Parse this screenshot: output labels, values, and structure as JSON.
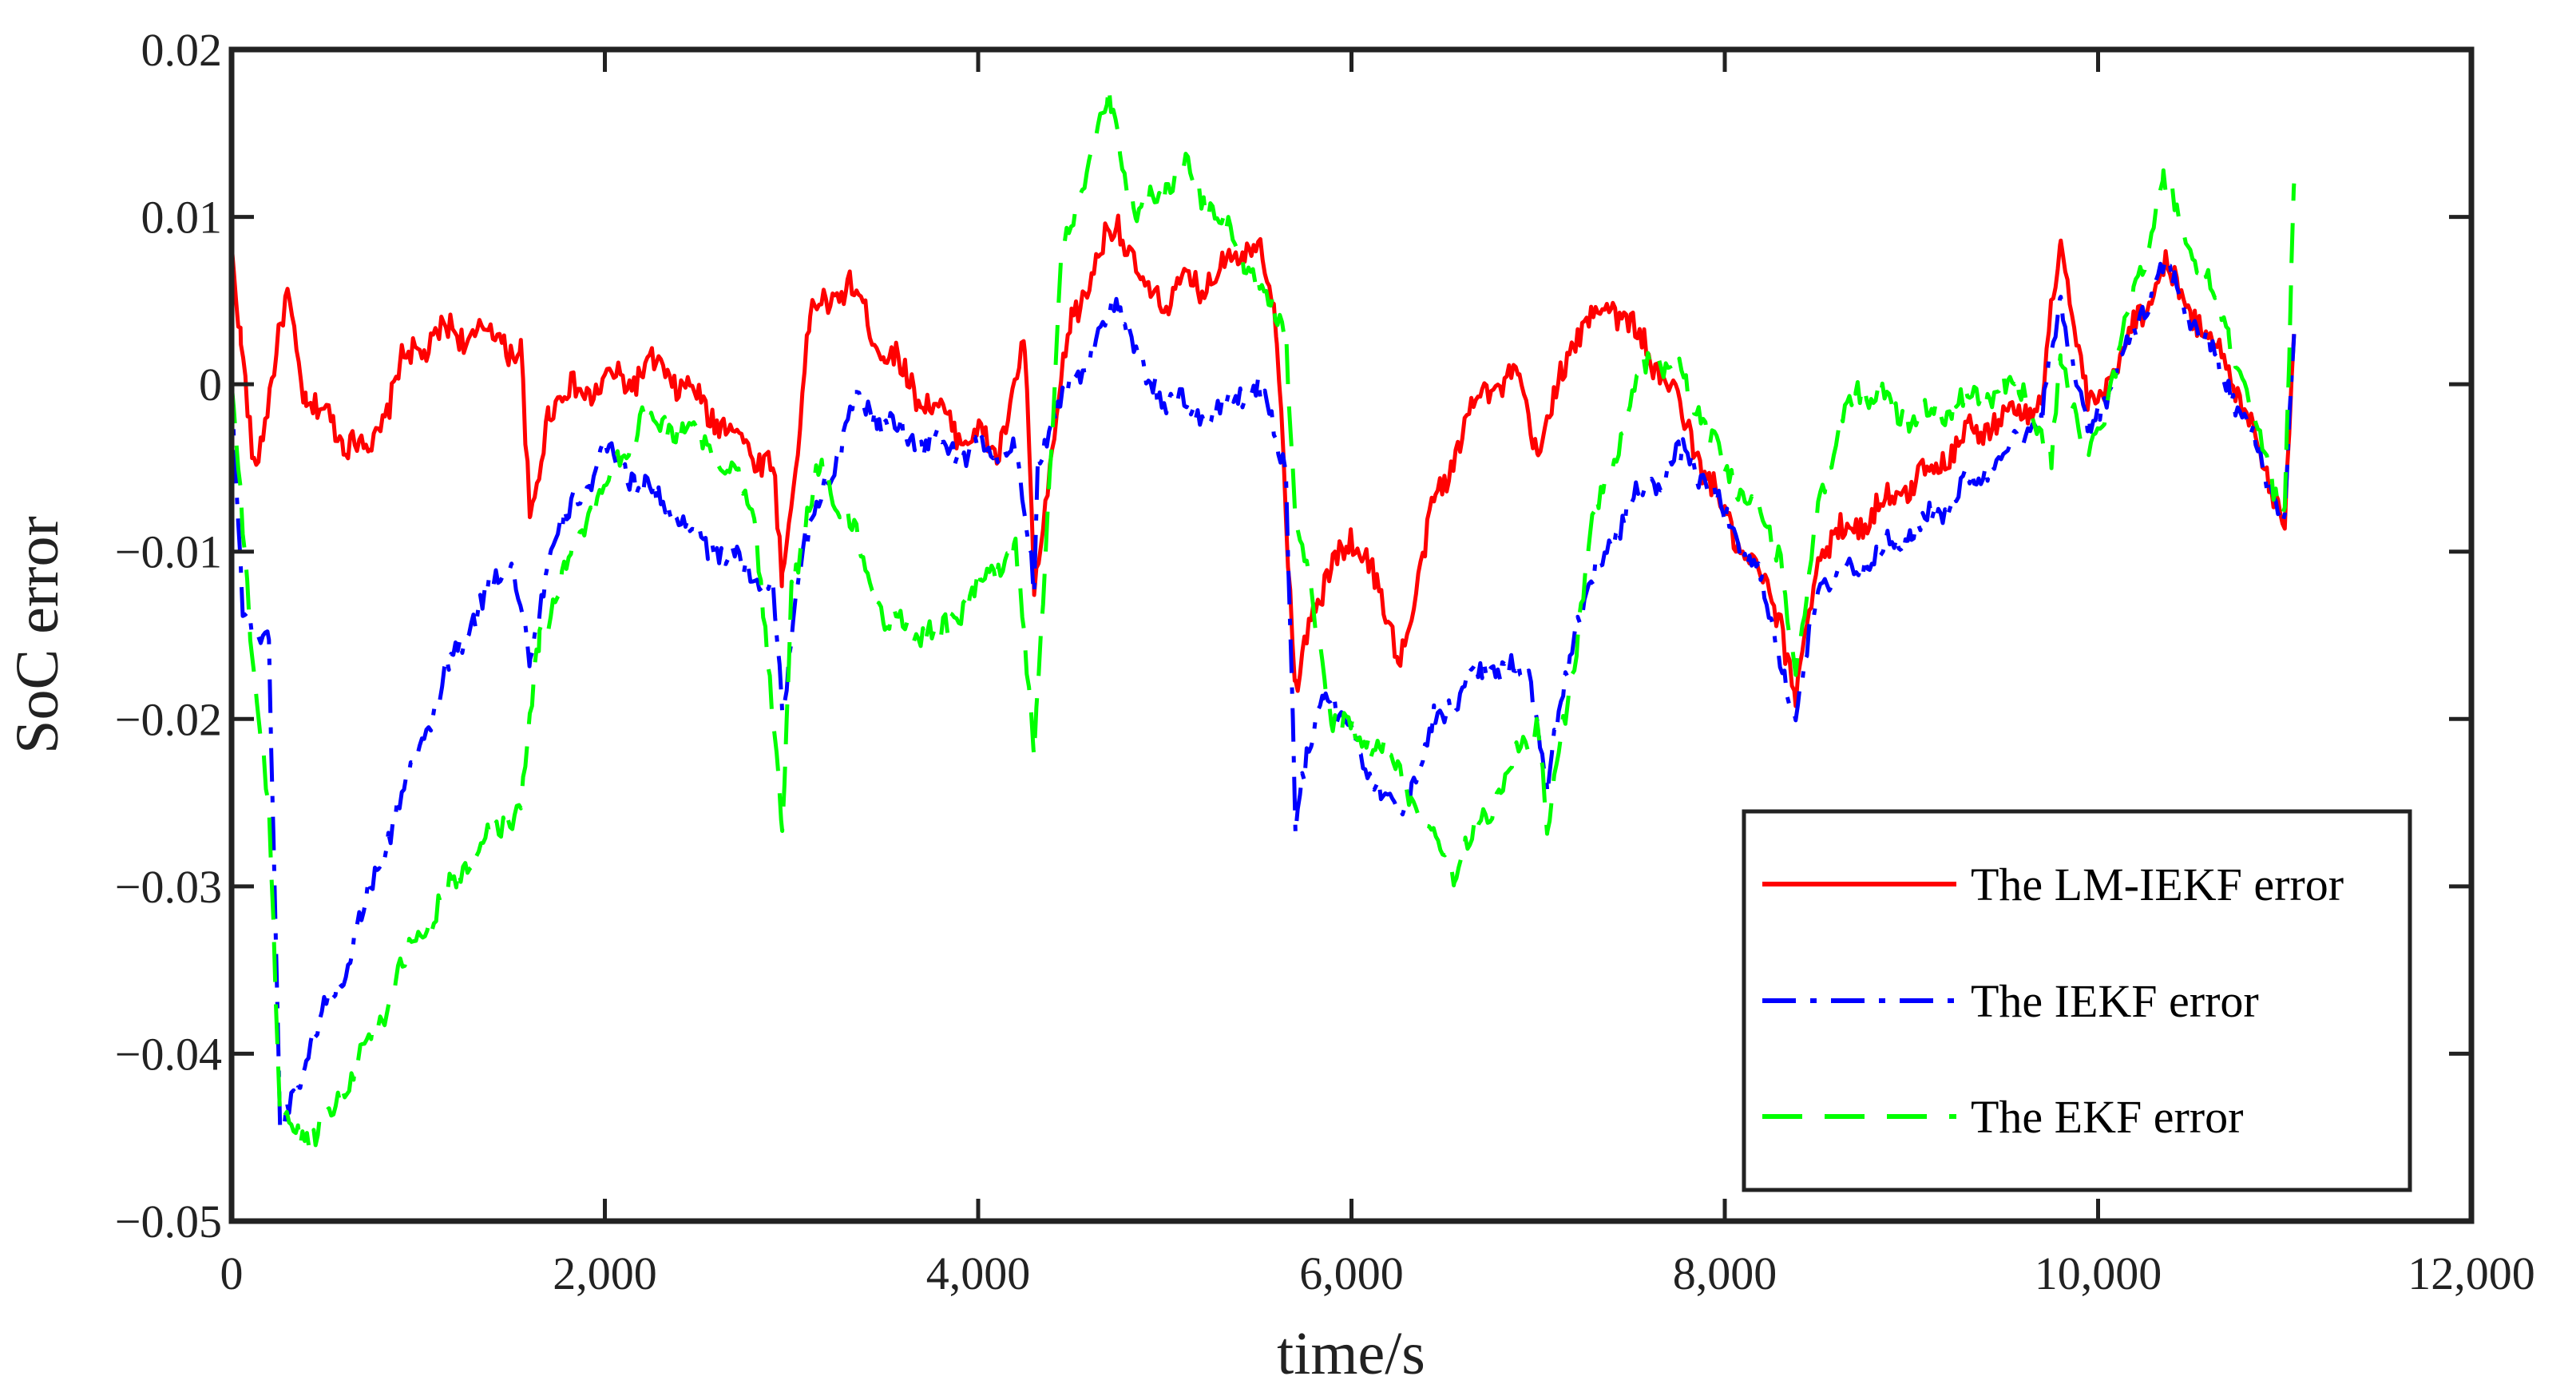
{
  "chart_data": {
    "type": "line",
    "title": "",
    "xlabel": "time/s",
    "ylabel": "SoC error",
    "xlim": [
      0,
      12000
    ],
    "ylim": [
      -0.05,
      0.02
    ],
    "xticks": [
      0,
      2000,
      4000,
      6000,
      8000,
      10000,
      12000
    ],
    "xtick_labels": [
      "0",
      "2,000",
      "4,000",
      "6,000",
      "8,000",
      "10,000",
      "12,000"
    ],
    "yticks": [
      0.02,
      0.01,
      0,
      -0.01,
      -0.02,
      -0.03,
      -0.04,
      -0.05
    ],
    "ytick_labels": [
      "0.02",
      "0.01",
      "0",
      "−0.01",
      "−0.02",
      "−0.03",
      "−0.04",
      "−0.05"
    ],
    "grid": false,
    "legend_position": "lower right",
    "series": [
      {
        "name": "The LM-IEKF error",
        "color": "#ff0000",
        "style": "solid",
        "x": [
          0,
          50,
          120,
          300,
          400,
          600,
          750,
          900,
          1100,
          1400,
          1550,
          1600,
          1700,
          2000,
          2300,
          2600,
          2900,
          2950,
          3100,
          3300,
          3500,
          3800,
          4100,
          4250,
          4300,
          4500,
          4750,
          4900,
          5200,
          5500,
          5600,
          5700,
          5900,
          6100,
          6250,
          6450,
          6700,
          6900,
          7000,
          7200,
          7400,
          7700,
          8000,
          8300,
          8380,
          8500,
          9000,
          9300,
          9700,
          9800,
          9950,
          10350,
          10700,
          11000,
          11050
        ],
        "y": [
          0.008,
          0.002,
          -0.005,
          0.005,
          -0.001,
          -0.003,
          -0.004,
          0.001,
          0.003,
          0.003,
          0.002,
          -0.009,
          -0.001,
          0.0,
          0.001,
          -0.002,
          -0.005,
          -0.012,
          0.004,
          0.006,
          0.002,
          -0.002,
          -0.004,
          0.002,
          -0.012,
          0.004,
          0.01,
          0.005,
          0.006,
          0.009,
          0.003,
          -0.018,
          -0.01,
          -0.01,
          -0.017,
          -0.007,
          0.0,
          0.0,
          -0.004,
          0.003,
          0.005,
          0.0,
          -0.008,
          -0.014,
          -0.019,
          -0.01,
          -0.006,
          -0.003,
          -0.001,
          0.009,
          -0.002,
          0.007,
          0.001,
          -0.008,
          0.003
        ]
      },
      {
        "name": "The IEKF error",
        "color": "#0000ff",
        "style": "dashdot",
        "x": [
          0,
          60,
          200,
          260,
          400,
          600,
          900,
          1200,
          1500,
          1600,
          1700,
          2000,
          2300,
          2600,
          2900,
          2950,
          3050,
          3350,
          3600,
          3900,
          4200,
          4300,
          4320,
          4500,
          4750,
          4900,
          5200,
          5500,
          5650,
          5700,
          5850,
          6050,
          6250,
          6450,
          6700,
          6950,
          7050,
          7200,
          7500,
          7800,
          8000,
          8200,
          8380,
          8500,
          9000,
          9300,
          9700,
          9800,
          9950,
          10350,
          10700,
          11000,
          11050
        ],
        "y": [
          0.0,
          -0.014,
          -0.015,
          -0.045,
          -0.04,
          -0.035,
          -0.025,
          -0.016,
          -0.01,
          -0.017,
          -0.01,
          -0.004,
          -0.007,
          -0.01,
          -0.012,
          -0.02,
          -0.01,
          -0.001,
          -0.003,
          -0.004,
          -0.004,
          -0.012,
          -0.004,
          0.0,
          0.005,
          0.0,
          -0.002,
          0.0,
          -0.005,
          -0.026,
          -0.018,
          -0.022,
          -0.026,
          -0.02,
          -0.017,
          -0.017,
          -0.024,
          -0.014,
          -0.007,
          -0.004,
          -0.008,
          -0.012,
          -0.02,
          -0.012,
          -0.009,
          -0.006,
          -0.002,
          0.005,
          -0.003,
          0.007,
          0.0,
          -0.008,
          0.003
        ]
      },
      {
        "name": "The EKF error",
        "color": "#00ff00",
        "style": "dashed",
        "x": [
          0,
          100,
          200,
          260,
          450,
          700,
          1000,
          1300,
          1550,
          1650,
          1900,
          2200,
          2500,
          2800,
          2950,
          3000,
          3150,
          3300,
          3500,
          3800,
          4000,
          4200,
          4300,
          4450,
          4700,
          4850,
          5100,
          5400,
          5650,
          5700,
          5900,
          6200,
          6550,
          6800,
          7000,
          7050,
          7300,
          7600,
          7800,
          8000,
          8300,
          8380,
          8500,
          8700,
          9000,
          9300,
          9600,
          9750,
          9800,
          9950,
          10350,
          10700,
          11000,
          11050
        ],
        "y": [
          0.0,
          -0.015,
          -0.025,
          -0.044,
          -0.045,
          -0.04,
          -0.033,
          -0.028,
          -0.025,
          -0.015,
          -0.008,
          -0.002,
          -0.003,
          -0.007,
          -0.027,
          -0.012,
          -0.005,
          -0.008,
          -0.014,
          -0.015,
          -0.012,
          -0.01,
          -0.022,
          0.008,
          0.017,
          0.01,
          0.013,
          0.008,
          0.003,
          -0.008,
          -0.02,
          -0.022,
          -0.029,
          -0.024,
          -0.02,
          -0.027,
          -0.008,
          0.002,
          0.0,
          -0.005,
          -0.01,
          -0.018,
          -0.007,
          0.0,
          -0.002,
          -0.001,
          0.0,
          -0.005,
          0.002,
          -0.005,
          0.012,
          0.003,
          -0.008,
          0.012
        ]
      }
    ]
  }
}
